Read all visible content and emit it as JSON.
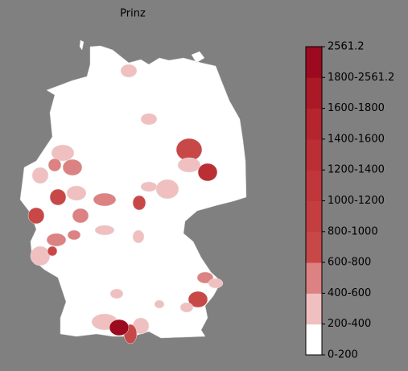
{
  "title": "Prinz",
  "colorbar": {
    "labels": [
      "0-200",
      "200-400",
      "400-600",
      "600-800",
      "800-1000",
      "1000-1200",
      "1200-1400",
      "1400-1600",
      "1600-1800",
      "1800-2561.2",
      "2561.2"
    ],
    "colors": [
      "#ffffff",
      "#f0c0c0",
      "#dc8282",
      "#c84848",
      "#c43e40",
      "#c0363a",
      "#bb2e34",
      "#b4252d",
      "#aa1a26",
      "#9b0a1e"
    ]
  }
}
